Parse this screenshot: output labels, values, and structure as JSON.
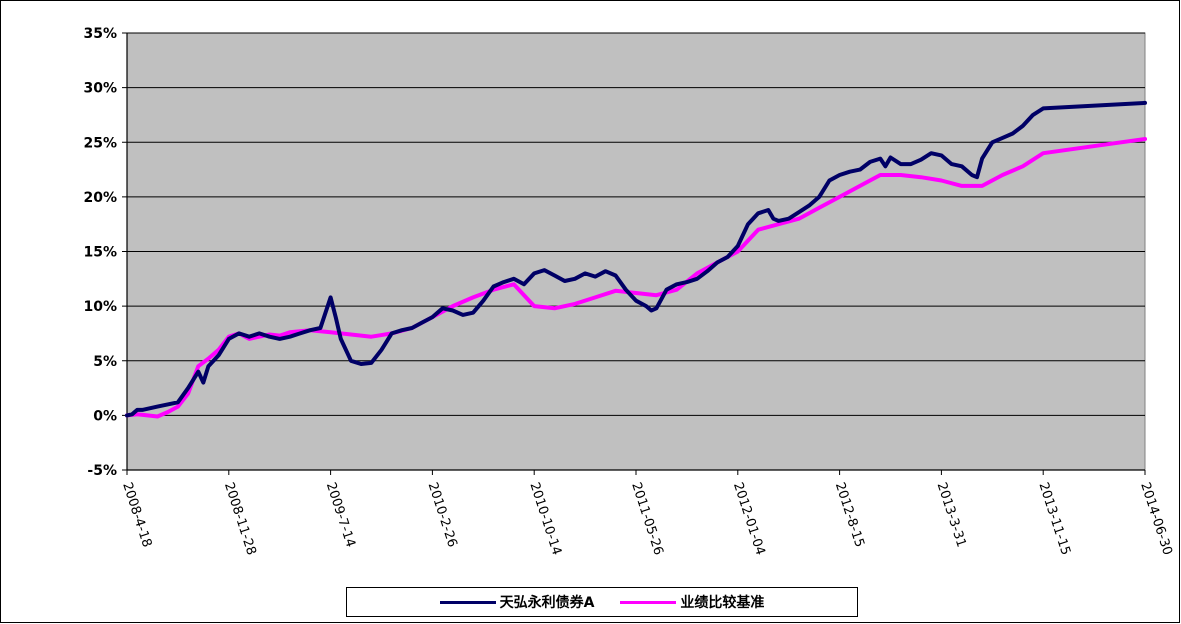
{
  "chart_data": {
    "type": "line",
    "title": "",
    "xlabel": "",
    "ylabel": "",
    "ylim": [
      -5,
      35
    ],
    "yticks": [
      "35%",
      "30%",
      "25%",
      "20%",
      "15%",
      "10%",
      "5%",
      "0%",
      "-5%"
    ],
    "xticks": [
      "2008-4-18",
      "2008-11-28",
      "2009-7-14",
      "2010-2-26",
      "2010-10-14",
      "2011-05-26",
      "2012-01-04",
      "2012-8-15",
      "2013-3-31",
      "2013-11-15",
      "2014-06-30"
    ],
    "grid": true,
    "plot_background": "#c0c0c0",
    "legend_position": "bottom",
    "series": [
      {
        "name": "天弘永利债券A",
        "color": "#000066",
        "points": [
          [
            0,
            0
          ],
          [
            0.05,
            0.1
          ],
          [
            0.1,
            0.5
          ],
          [
            0.15,
            0.5
          ],
          [
            0.2,
            0.6
          ],
          [
            0.3,
            0.8
          ],
          [
            0.4,
            1.0
          ],
          [
            0.5,
            1.2
          ],
          [
            0.6,
            2.5
          ],
          [
            0.7,
            4.0
          ],
          [
            0.75,
            3.0
          ],
          [
            0.8,
            4.5
          ],
          [
            0.9,
            5.5
          ],
          [
            1.0,
            7.0
          ],
          [
            1.1,
            7.5
          ],
          [
            1.2,
            7.2
          ],
          [
            1.3,
            7.5
          ],
          [
            1.4,
            7.2
          ],
          [
            1.5,
            7.0
          ],
          [
            1.6,
            7.2
          ],
          [
            1.7,
            7.5
          ],
          [
            1.8,
            7.8
          ],
          [
            1.9,
            8.0
          ],
          [
            2.0,
            10.8
          ],
          [
            2.05,
            9.0
          ],
          [
            2.1,
            7.0
          ],
          [
            2.2,
            5.0
          ],
          [
            2.3,
            4.7
          ],
          [
            2.4,
            4.8
          ],
          [
            2.5,
            6.0
          ],
          [
            2.6,
            7.5
          ],
          [
            2.7,
            7.8
          ],
          [
            2.8,
            8.0
          ],
          [
            2.9,
            8.5
          ],
          [
            3.0,
            9.0
          ],
          [
            3.1,
            9.8
          ],
          [
            3.2,
            9.6
          ],
          [
            3.3,
            9.2
          ],
          [
            3.4,
            9.4
          ],
          [
            3.5,
            10.5
          ],
          [
            3.6,
            11.8
          ],
          [
            3.7,
            12.2
          ],
          [
            3.8,
            12.5
          ],
          [
            3.9,
            12.0
          ],
          [
            4.0,
            13.0
          ],
          [
            4.1,
            13.3
          ],
          [
            4.2,
            12.8
          ],
          [
            4.3,
            12.3
          ],
          [
            4.4,
            12.5
          ],
          [
            4.5,
            13.0
          ],
          [
            4.6,
            12.7
          ],
          [
            4.7,
            13.2
          ],
          [
            4.8,
            12.8
          ],
          [
            4.9,
            11.5
          ],
          [
            5.0,
            10.5
          ],
          [
            5.1,
            10.0
          ],
          [
            5.15,
            9.6
          ],
          [
            5.2,
            9.8
          ],
          [
            5.3,
            11.5
          ],
          [
            5.4,
            12.0
          ],
          [
            5.5,
            12.2
          ],
          [
            5.6,
            12.5
          ],
          [
            5.7,
            13.2
          ],
          [
            5.8,
            14.0
          ],
          [
            5.9,
            14.5
          ],
          [
            6.0,
            15.5
          ],
          [
            6.1,
            17.5
          ],
          [
            6.2,
            18.5
          ],
          [
            6.3,
            18.8
          ],
          [
            6.35,
            18.0
          ],
          [
            6.4,
            17.8
          ],
          [
            6.5,
            18.0
          ],
          [
            6.6,
            18.6
          ],
          [
            6.7,
            19.2
          ],
          [
            6.8,
            20.0
          ],
          [
            6.9,
            21.5
          ],
          [
            7.0,
            22.0
          ],
          [
            7.1,
            22.3
          ],
          [
            7.2,
            22.5
          ],
          [
            7.3,
            23.2
          ],
          [
            7.4,
            23.5
          ],
          [
            7.45,
            22.8
          ],
          [
            7.5,
            23.6
          ],
          [
            7.6,
            23.0
          ],
          [
            7.7,
            23.0
          ],
          [
            7.8,
            23.4
          ],
          [
            7.9,
            24.0
          ],
          [
            8.0,
            23.8
          ],
          [
            8.1,
            23.0
          ],
          [
            8.2,
            22.8
          ],
          [
            8.3,
            22.0
          ],
          [
            8.35,
            21.8
          ],
          [
            8.4,
            23.5
          ],
          [
            8.5,
            25.0
          ],
          [
            8.6,
            25.4
          ],
          [
            8.7,
            25.8
          ],
          [
            8.8,
            26.5
          ],
          [
            8.9,
            27.5
          ],
          [
            9.0,
            28.1
          ],
          [
            10.0,
            28.6
          ]
        ]
      },
      {
        "name": "业绩比较基准",
        "color": "#ff00ff",
        "points": [
          [
            0,
            0
          ],
          [
            0.1,
            0.1
          ],
          [
            0.2,
            0.0
          ],
          [
            0.3,
            -0.1
          ],
          [
            0.4,
            0.3
          ],
          [
            0.5,
            0.8
          ],
          [
            0.6,
            2.0
          ],
          [
            0.7,
            4.5
          ],
          [
            0.8,
            5.2
          ],
          [
            0.9,
            6.0
          ],
          [
            1.0,
            7.2
          ],
          [
            1.1,
            7.5
          ],
          [
            1.2,
            7.0
          ],
          [
            1.3,
            7.2
          ],
          [
            1.4,
            7.4
          ],
          [
            1.5,
            7.3
          ],
          [
            1.6,
            7.6
          ],
          [
            1.8,
            7.8
          ],
          [
            2.0,
            7.6
          ],
          [
            2.2,
            7.4
          ],
          [
            2.4,
            7.2
          ],
          [
            2.6,
            7.5
          ],
          [
            2.8,
            8.0
          ],
          [
            3.0,
            9.0
          ],
          [
            3.2,
            10.0
          ],
          [
            3.4,
            10.8
          ],
          [
            3.6,
            11.5
          ],
          [
            3.8,
            12.0
          ],
          [
            4.0,
            10.0
          ],
          [
            4.2,
            9.8
          ],
          [
            4.4,
            10.2
          ],
          [
            4.6,
            10.8
          ],
          [
            4.8,
            11.4
          ],
          [
            5.0,
            11.2
          ],
          [
            5.2,
            11.0
          ],
          [
            5.4,
            11.5
          ],
          [
            5.6,
            13.0
          ],
          [
            5.8,
            14.0
          ],
          [
            6.0,
            15.0
          ],
          [
            6.2,
            17.0
          ],
          [
            6.4,
            17.5
          ],
          [
            6.6,
            18.0
          ],
          [
            6.8,
            19.0
          ],
          [
            7.0,
            20.0
          ],
          [
            7.2,
            21.0
          ],
          [
            7.4,
            22.0
          ],
          [
            7.6,
            22.0
          ],
          [
            7.8,
            21.8
          ],
          [
            8.0,
            21.5
          ],
          [
            8.2,
            21.0
          ],
          [
            8.4,
            21.0
          ],
          [
            8.6,
            22.0
          ],
          [
            8.8,
            22.8
          ],
          [
            9.0,
            24.0
          ],
          [
            10.0,
            25.3
          ]
        ]
      }
    ]
  },
  "legend": {
    "items": [
      {
        "name": "天弘永利债券A",
        "color": "#000066"
      },
      {
        "name": "业绩比较基准",
        "color": "#ff00ff"
      }
    ]
  }
}
